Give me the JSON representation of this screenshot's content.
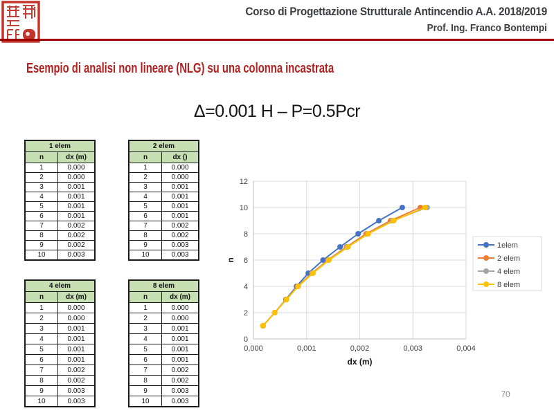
{
  "header": {
    "course_title": "Corso di Progettazione Strutturale Antincendio A.A. 2018/2019",
    "professor": "Prof. Ing. Franco Bontempi"
  },
  "slide": {
    "title": "Esempio di analisi non lineare (NLG) su una colonna incastrata",
    "subtitle": "Δ=0.001 H – P=0.5Pcr",
    "page_number": "70"
  },
  "tables": [
    {
      "title": "1 elem",
      "columns": [
        "n",
        "dx (m)"
      ],
      "rows": [
        [
          "1",
          "0.000"
        ],
        [
          "2",
          "0.000"
        ],
        [
          "3",
          "0.001"
        ],
        [
          "4",
          "0.001"
        ],
        [
          "5",
          "0.001"
        ],
        [
          "6",
          "0.001"
        ],
        [
          "7",
          "0.002"
        ],
        [
          "8",
          "0.002"
        ],
        [
          "9",
          "0.002"
        ],
        [
          "10",
          "0.003"
        ]
      ]
    },
    {
      "title": "2 elem",
      "columns": [
        "n",
        "dx ()"
      ],
      "rows": [
        [
          "1",
          "0.000"
        ],
        [
          "2",
          "0.000"
        ],
        [
          "3",
          "0.001"
        ],
        [
          "4",
          "0.001"
        ],
        [
          "5",
          "0.001"
        ],
        [
          "6",
          "0.001"
        ],
        [
          "7",
          "0.002"
        ],
        [
          "8",
          "0.002"
        ],
        [
          "9",
          "0.003"
        ],
        [
          "10",
          "0.003"
        ]
      ]
    },
    {
      "title": "4 elem",
      "columns": [
        "n",
        "dx (m)"
      ],
      "rows": [
        [
          "1",
          "0.000"
        ],
        [
          "2",
          "0.000"
        ],
        [
          "3",
          "0.001"
        ],
        [
          "4",
          "0.001"
        ],
        [
          "5",
          "0.001"
        ],
        [
          "6",
          "0.001"
        ],
        [
          "7",
          "0.002"
        ],
        [
          "8",
          "0.002"
        ],
        [
          "9",
          "0.003"
        ],
        [
          "10",
          "0.003"
        ]
      ]
    },
    {
      "title": "8 elem",
      "columns": [
        "n",
        "dx (m)"
      ],
      "rows": [
        [
          "1",
          "0.000"
        ],
        [
          "2",
          "0.000"
        ],
        [
          "3",
          "0.001"
        ],
        [
          "4",
          "0.001"
        ],
        [
          "5",
          "0.001"
        ],
        [
          "6",
          "0.001"
        ],
        [
          "7",
          "0.002"
        ],
        [
          "8",
          "0.002"
        ],
        [
          "9",
          "0.003"
        ],
        [
          "10",
          "0.003"
        ]
      ]
    }
  ],
  "chart_data": {
    "type": "line",
    "title": "",
    "xlabel": "dx (m)",
    "ylabel": "n",
    "xlim": [
      0,
      0.004
    ],
    "ylim": [
      0,
      12
    ],
    "xticks": [
      0,
      0.001,
      0.002,
      0.003,
      0.004
    ],
    "xticklabels": [
      "0,000",
      "0,001",
      "0,002",
      "0,003",
      "0,004"
    ],
    "yticks": [
      0,
      2,
      4,
      6,
      8,
      10,
      12
    ],
    "grid": true,
    "legend_position": "right",
    "y": [
      1,
      2,
      3,
      4,
      5,
      6,
      7,
      8,
      9,
      10
    ],
    "series": [
      {
        "name": "1elem",
        "color": "#4472C4",
        "x": [
          0.00018,
          0.0004,
          0.00061,
          0.00081,
          0.00103,
          0.00131,
          0.00163,
          0.00197,
          0.00236,
          0.0028
        ]
      },
      {
        "name": "2 elem",
        "color": "#ED7D31",
        "x": [
          0.00018,
          0.0004,
          0.00062,
          0.00083,
          0.0011,
          0.0014,
          0.00175,
          0.00212,
          0.00258,
          0.00314
        ]
      },
      {
        "name": "4 elem",
        "color": "#A5A5A5",
        "x": [
          0.00018,
          0.0004,
          0.00062,
          0.00084,
          0.00111,
          0.00141,
          0.00177,
          0.00215,
          0.00262,
          0.00327
        ]
      },
      {
        "name": "8 elem",
        "color": "#FFC000",
        "x": [
          0.00018,
          0.0004,
          0.00062,
          0.00084,
          0.00112,
          0.00142,
          0.00178,
          0.00216,
          0.00264,
          0.00323
        ]
      }
    ]
  },
  "colors": {
    "header_text": "#3c3c43",
    "accent_rule_red": "#a00000",
    "title_red": "#b22020",
    "table_header_green": "#c6e0b4",
    "gridline_gray": "#d9d9d9",
    "axis_gray": "#bfbfbf",
    "seal_red": "#c2352b",
    "page_number_gray": "#8a8a8a"
  }
}
